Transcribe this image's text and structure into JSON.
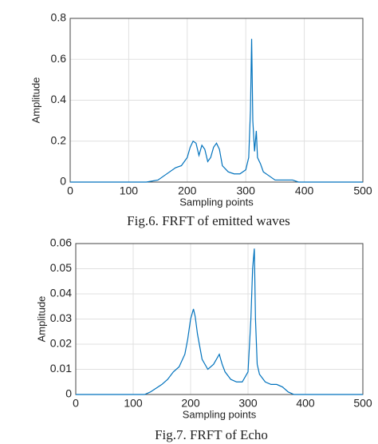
{
  "chart_data": [
    {
      "type": "line",
      "caption": "Fig.6. FRFT of emitted waves",
      "x_label": "Sampling points",
      "y_label": "Amplitude",
      "xlim": [
        0,
        500
      ],
      "xticks": [
        0,
        100,
        200,
        300,
        400,
        500
      ],
      "ylim": [
        0,
        0.8
      ],
      "yticks": [
        0,
        0.2,
        0.4,
        0.6,
        0.8
      ],
      "grid": true,
      "series": [
        {
          "color": "#0072bd",
          "x": [
            0,
            100,
            130,
            150,
            160,
            170,
            180,
            190,
            200,
            205,
            210,
            215,
            220,
            225,
            230,
            235,
            240,
            245,
            250,
            255,
            260,
            270,
            280,
            290,
            300,
            305,
            308,
            310,
            312,
            315,
            318,
            320,
            325,
            330,
            340,
            350,
            360,
            370,
            380,
            390,
            400,
            500
          ],
          "values": [
            0,
            0,
            0,
            0.01,
            0.03,
            0.05,
            0.07,
            0.08,
            0.12,
            0.17,
            0.2,
            0.19,
            0.13,
            0.18,
            0.16,
            0.1,
            0.12,
            0.17,
            0.19,
            0.16,
            0.08,
            0.05,
            0.04,
            0.04,
            0.06,
            0.12,
            0.35,
            0.7,
            0.3,
            0.15,
            0.25,
            0.12,
            0.09,
            0.05,
            0.03,
            0.01,
            0.01,
            0.01,
            0.01,
            0,
            0,
            0
          ]
        }
      ]
    },
    {
      "type": "line",
      "caption": "Fig.7. FRFT of Echo",
      "x_label": "Sampling points",
      "y_label": "Amplitude",
      "xlim": [
        0,
        500
      ],
      "xticks": [
        0,
        100,
        200,
        300,
        400,
        500
      ],
      "ylim": [
        0,
        0.06
      ],
      "yticks": [
        0,
        0.01,
        0.02,
        0.03,
        0.04,
        0.05,
        0.06
      ],
      "grid": true,
      "series": [
        {
          "color": "#0072bd",
          "x": [
            0,
            120,
            130,
            150,
            160,
            170,
            180,
            190,
            195,
            200,
            205,
            208,
            212,
            220,
            230,
            240,
            250,
            255,
            260,
            270,
            280,
            290,
            300,
            305,
            308,
            311,
            313,
            316,
            320,
            330,
            340,
            350,
            360,
            370,
            380,
            500
          ],
          "values": [
            0,
            0,
            0.001,
            0.004,
            0.006,
            0.009,
            0.011,
            0.016,
            0.022,
            0.03,
            0.034,
            0.031,
            0.024,
            0.014,
            0.01,
            0.012,
            0.016,
            0.012,
            0.009,
            0.006,
            0.005,
            0.005,
            0.009,
            0.03,
            0.05,
            0.058,
            0.03,
            0.012,
            0.008,
            0.005,
            0.004,
            0.004,
            0.003,
            0.001,
            0,
            0
          ]
        }
      ]
    }
  ]
}
